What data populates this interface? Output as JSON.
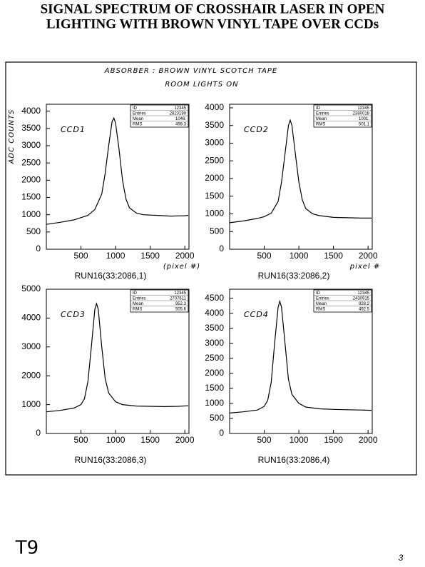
{
  "header": {
    "title_line1": "SIGNAL SPECTRUM OF CROSSHAIR LASER IN OPEN",
    "title_line2": "LIGHTING WITH BROWN VINYL TAPE OVER CCDs"
  },
  "notes": {
    "absorber": "ABSORBER :  BROWN VINYL SCOTCH TAPE",
    "lights": "ROOM LIGHTS ON",
    "page_id": "T9",
    "page_number": "3"
  },
  "chart_data": [
    {
      "type": "line",
      "label": "CCD1",
      "x_label": "RUN16(33:2086,1)",
      "y_label": "ADC COUNTS",
      "x_note": "(pixel #)",
      "color": "#000000",
      "x": [
        0,
        200,
        400,
        600,
        700,
        800,
        850,
        900,
        950,
        975,
        1000,
        1050,
        1100,
        1150,
        1200,
        1300,
        1400,
        1600,
        1800,
        2000,
        2050
      ],
      "values": [
        720,
        780,
        850,
        980,
        1150,
        1600,
        2200,
        3000,
        3700,
        3800,
        3650,
        2900,
        2000,
        1450,
        1200,
        1050,
        1000,
        980,
        960,
        970,
        980
      ],
      "xlim": [
        0,
        2060
      ],
      "xticks": [
        500,
        1000,
        1500,
        2000
      ],
      "ylim": [
        0,
        4200
      ],
      "yticks": [
        0,
        500,
        1000,
        1500,
        2000,
        2500,
        3000,
        3500,
        4000
      ],
      "stats": [
        [
          "ID",
          "12345"
        ],
        [
          "Entries",
          "2823199"
        ],
        [
          "Mean",
          "1046."
        ],
        [
          "RMS",
          "498.3"
        ]
      ]
    },
    {
      "type": "line",
      "label": "CCD2",
      "x_label": "RUN16(33:2086,2)",
      "x_note": "pixel #",
      "color": "#000000",
      "x": [
        0,
        200,
        400,
        500,
        600,
        700,
        750,
        800,
        850,
        875,
        900,
        950,
        1000,
        1050,
        1100,
        1200,
        1300,
        1500,
        1700,
        1900,
        2050
      ],
      "values": [
        750,
        800,
        870,
        920,
        1020,
        1350,
        1900,
        2700,
        3500,
        3650,
        3500,
        2700,
        1900,
        1400,
        1150,
        1000,
        950,
        900,
        890,
        880,
        880
      ],
      "xlim": [
        0,
        2060
      ],
      "xticks": [
        500,
        1000,
        1500,
        2000
      ],
      "ylim": [
        0,
        4100
      ],
      "yticks": [
        0,
        500,
        1000,
        1500,
        2000,
        2500,
        3000,
        3500,
        4000
      ],
      "stats": [
        [
          "ID",
          "12345"
        ],
        [
          "Entries",
          "2380018"
        ],
        [
          "Mean",
          "1001."
        ],
        [
          "RMS",
          "501.1"
        ]
      ]
    },
    {
      "type": "line",
      "label": "CCD3",
      "x_label": "RUN16(33:2086,3)",
      "color": "#000000",
      "x": [
        0,
        200,
        400,
        500,
        550,
        600,
        650,
        700,
        725,
        750,
        800,
        850,
        900,
        1000,
        1100,
        1300,
        1500,
        1700,
        1900,
        2050
      ],
      "values": [
        750,
        800,
        880,
        1000,
        1200,
        1800,
        3000,
        4300,
        4500,
        4300,
        3000,
        1900,
        1400,
        1100,
        1000,
        950,
        940,
        930,
        940,
        960
      ],
      "xlim": [
        0,
        2060
      ],
      "xticks": [
        500,
        1000,
        1500,
        2000
      ],
      "ylim": [
        0,
        5000
      ],
      "yticks": [
        0,
        1000,
        2000,
        3000,
        4000,
        5000
      ],
      "stats": [
        [
          "ID",
          "12345"
        ],
        [
          "Entries",
          "2707611"
        ],
        [
          "Mean",
          "952.3"
        ],
        [
          "RMS",
          "505.6"
        ]
      ]
    },
    {
      "type": "line",
      "label": "CCD4",
      "x_label": "RUN16(33:2086,4)",
      "color": "#000000",
      "x": [
        0,
        200,
        400,
        500,
        550,
        600,
        650,
        700,
        725,
        750,
        800,
        850,
        900,
        1000,
        1100,
        1300,
        1500,
        1700,
        1900,
        2050
      ],
      "values": [
        680,
        720,
        780,
        900,
        1100,
        1700,
        3000,
        4200,
        4400,
        4200,
        3000,
        1800,
        1300,
        1000,
        880,
        820,
        800,
        790,
        780,
        770
      ],
      "xlim": [
        0,
        2060
      ],
      "xticks": [
        500,
        1000,
        1500,
        2000
      ],
      "ylim": [
        0,
        4800
      ],
      "yticks": [
        0,
        500,
        1000,
        1500,
        2000,
        2500,
        3000,
        3500,
        4000,
        4500
      ],
      "stats": [
        [
          "ID",
          "12345"
        ],
        [
          "Entries",
          "2430915"
        ],
        [
          "Mean",
          "928.2"
        ],
        [
          "RMS",
          "492.5"
        ]
      ]
    }
  ]
}
